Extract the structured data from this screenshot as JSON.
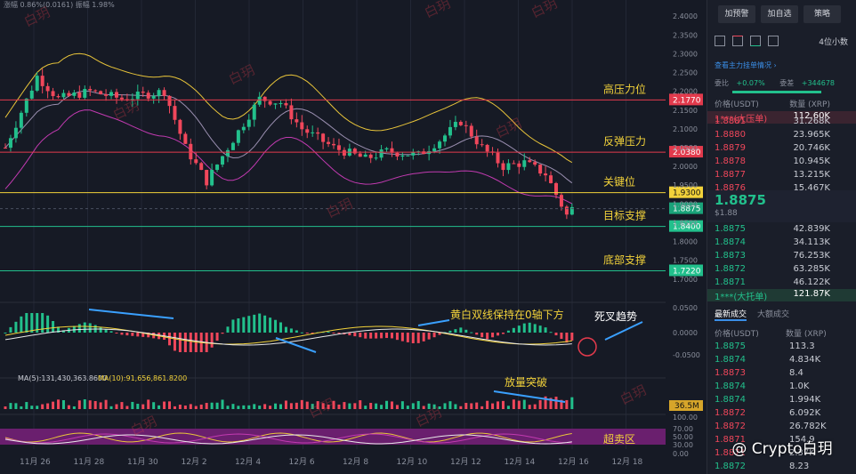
{
  "chart_data": {
    "type": "candlestick",
    "x_ticks": [
      "11月 26",
      "11月 28",
      "11月 30",
      "12月 2",
      "12月 4",
      "12月 6",
      "12月 8",
      "12月 10",
      "12月 12",
      "12月 14",
      "12月 16",
      "12月 18"
    ],
    "header_text": "涨幅 0.86%(0.0161)  振幅 1.98%",
    "price_axis_ticks": [
      "2.4000",
      "2.3500",
      "2.3000",
      "2.2500",
      "2.2000",
      "2.1500",
      "2.1000",
      "2.0500",
      "2.0000",
      "1.9500",
      "1.9000",
      "1.8500",
      "1.8000",
      "1.7500",
      "1.7000"
    ],
    "price_range": [
      1.69,
      2.41
    ],
    "levels": [
      {
        "price": 2.177,
        "tag": "2.1770",
        "label": "高压力位",
        "color": "#e23a4c"
      },
      {
        "price": 2.038,
        "tag": "2.0380",
        "label": "反弹压力",
        "color": "#e23a4c"
      },
      {
        "price": 1.93,
        "tag": "1.9300",
        "label": "关键位",
        "color": "#f2d23a"
      },
      {
        "price": 1.84,
        "tag": "1.8400",
        "label": "目标支撑",
        "color": "#22c08c"
      },
      {
        "price": 1.722,
        "tag": "1.7220",
        "label": "底部支撑",
        "color": "#22c08c"
      }
    ],
    "current_price": "1.8875",
    "macd_ticks": [
      "0.0500",
      "0.0000",
      "-0.0500"
    ],
    "macd_annotations": [
      "黄白双线保持在0轴下方",
      "死叉趋势"
    ],
    "volume_legend": [
      "MA(5):131,430,363.8600",
      "MA(10):91,656,861.8200"
    ],
    "volume_tag": "36.5M",
    "volume_annotation": "放量突破",
    "rsi_ticks": [
      "100.00",
      "70.00",
      "50.00",
      "30.00",
      "0.00"
    ],
    "rsi_annotation": "超卖区"
  },
  "side": {
    "buttons": [
      "加预警",
      "加自选",
      "策略"
    ],
    "precision": "4位小数",
    "link": "查看主力挂单情况 ›",
    "stat1_label": "委比",
    "stat1_value": "+0.07%",
    "stat2_label": "委差",
    "stat2_value": "+344678",
    "col_price": "价格(USDT)",
    "col_qty": "数量 (XRP)",
    "big_sell": {
      "label": "1***(大压单)",
      "value": "112.60K"
    },
    "asks": [
      {
        "p": "1.8881",
        "q": "31.268K"
      },
      {
        "p": "1.8880",
        "q": "23.965K"
      },
      {
        "p": "1.8879",
        "q": "20.746K"
      },
      {
        "p": "1.8878",
        "q": "10.945K"
      },
      {
        "p": "1.8877",
        "q": "13.215K"
      },
      {
        "p": "1.8876",
        "q": "15.467K"
      }
    ],
    "mid_price": "1.8875",
    "mid_sub": "$1.88",
    "bids": [
      {
        "p": "1.8875",
        "q": "42.839K"
      },
      {
        "p": "1.8874",
        "q": "34.113K"
      },
      {
        "p": "1.8873",
        "q": "76.253K"
      },
      {
        "p": "1.8872",
        "q": "63.285K"
      },
      {
        "p": "1.8871",
        "q": "46.122K"
      },
      {
        "p": "1.8870",
        "q": "20.102K"
      }
    ],
    "big_buy": {
      "label": "1***(大托单)",
      "value": "121.87K"
    },
    "tab_active": "最新成交",
    "tab_other": "大额成交",
    "trades": [
      {
        "p": "1.8875",
        "q": "113.3",
        "c": "grn"
      },
      {
        "p": "1.8874",
        "q": "4.834K",
        "c": "grn"
      },
      {
        "p": "1.8873",
        "q": "8.4",
        "c": "red"
      },
      {
        "p": "1.8874",
        "q": "1.0K",
        "c": "grn"
      },
      {
        "p": "1.8874",
        "q": "1.994K",
        "c": "grn"
      },
      {
        "p": "1.8872",
        "q": "6.092K",
        "c": "red"
      },
      {
        "p": "1.8872",
        "q": "26.782K",
        "c": "red"
      },
      {
        "p": "1.8871",
        "q": "154.9",
        "c": "red"
      },
      {
        "p": "1.8871",
        "q": "2.37K",
        "c": "red"
      },
      {
        "p": "1.8872",
        "q": "8.23",
        "c": "grn"
      }
    ],
    "watermark_text": "@ Crypto白玥",
    "wm_small": "白玥"
  }
}
